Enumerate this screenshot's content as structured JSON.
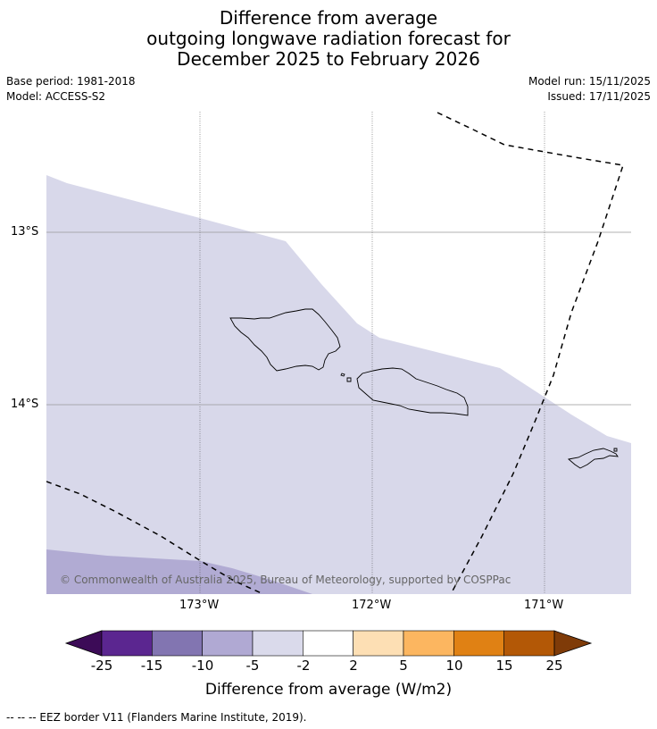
{
  "title": {
    "line1": "Difference from average",
    "line2": "outgoing longwave radiation forecast for",
    "line3": "December 2025 to February 2026"
  },
  "meta": {
    "base_period": "Base period: 1981-2018",
    "model": "Model: ACCESS-S2",
    "model_run": "Model run: 15/11/2025",
    "issued": "Issued: 17/11/2025"
  },
  "map": {
    "lat_labels": [
      "13°S",
      "14°S"
    ],
    "lon_labels": [
      "173°W",
      "172°W",
      "171°W"
    ],
    "copyright": "© Commonwealth of Australia 2025, Bureau of Meteorology, supported by COSPPac",
    "colors": {
      "light_lavender": "#d8d8ea",
      "mid_lavender": "#b1abd3"
    }
  },
  "colorbar": {
    "title": "Difference from average (W/m2)",
    "ticks": [
      "-25",
      "-15",
      "-10",
      "-5",
      "-2",
      "2",
      "5",
      "10",
      "15",
      "25"
    ],
    "colors": [
      "#3c0b57",
      "#5b2690",
      "#8275b1",
      "#b0a9d3",
      "#dadaeb",
      "#ffffff",
      "#fddfb4",
      "#fcb660",
      "#e08114",
      "#b35806",
      "#7f3b08"
    ]
  },
  "footnote": "--  --  -- EEZ border V11 (Flanders Marine Institute, 2019)."
}
